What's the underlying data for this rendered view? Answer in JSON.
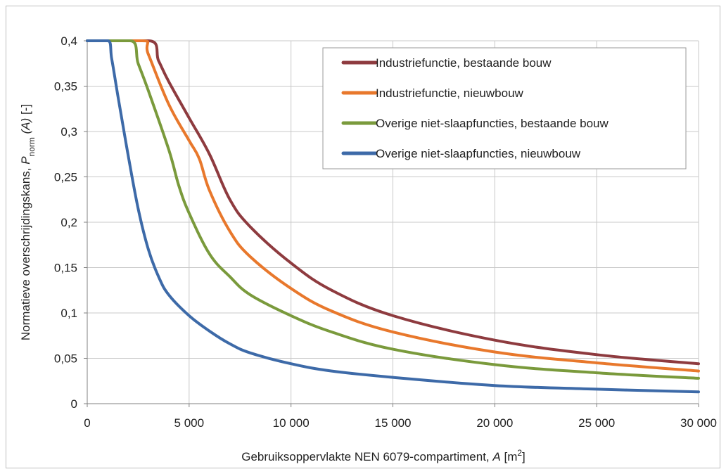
{
  "chart_data": {
    "type": "line",
    "xlabel": "Gebruiksoppervlakte NEN 6079-compartiment,",
    "xlabel_symbol": "A",
    "xlabel_unit_open": "[m",
    "xlabel_unit_exp": "2",
    "xlabel_unit_close": "]",
    "ylabel": "Normatieve overschrijdingskans,",
    "ylabel_symbol": "P",
    "ylabel_subscript": "norm",
    "ylabel_arg": "(A)",
    "ylabel_unit": "[-]",
    "xlim": [
      0,
      30000
    ],
    "ylim": [
      0,
      0.4
    ],
    "x_ticks": [
      0,
      5000,
      10000,
      15000,
      20000,
      25000,
      30000
    ],
    "x_tick_labels": [
      "0",
      "5 000",
      "10 000",
      "15 000",
      "20 000",
      "25 000",
      "30 000"
    ],
    "y_ticks": [
      0,
      0.05,
      0.1,
      0.15,
      0.2,
      0.25,
      0.3,
      0.35,
      0.4
    ],
    "y_tick_labels": [
      "0",
      "0,05",
      "0,1",
      "0,15",
      "0,2",
      "0,25",
      "0,3",
      "0,35",
      "0,4"
    ],
    "grid": true,
    "legend_position": "top-right",
    "series": [
      {
        "name": "Industriefunctie, bestaande bouw",
        "color": "#8e3b3f",
        "x": [
          0,
          3000,
          3500,
          4000,
          5000,
          6000,
          7000,
          8000,
          10000,
          12000,
          15000,
          20000,
          25000,
          30000
        ],
        "y": [
          0.4,
          0.4,
          0.378,
          0.355,
          0.315,
          0.275,
          0.225,
          0.195,
          0.155,
          0.125,
          0.097,
          0.07,
          0.054,
          0.044
        ]
      },
      {
        "name": "Industriefunctie, nieuwbouw",
        "color": "#e8782c",
        "x": [
          0,
          2700,
          3000,
          4000,
          5000,
          5500,
          6000,
          7000,
          8000,
          10000,
          12000,
          15000,
          20000,
          25000,
          30000
        ],
        "y": [
          0.4,
          0.4,
          0.385,
          0.33,
          0.29,
          0.27,
          0.235,
          0.19,
          0.162,
          0.127,
          0.102,
          0.079,
          0.057,
          0.045,
          0.036
        ]
      },
      {
        "name": "Overige niet-slaapfuncties, bestaande bouw",
        "color": "#7a9a3c",
        "x": [
          0,
          2100,
          2500,
          3000,
          4000,
          4500,
          5000,
          6000,
          7000,
          8000,
          10000,
          12000,
          15000,
          20000,
          25000,
          30000
        ],
        "y": [
          0.4,
          0.4,
          0.375,
          0.345,
          0.28,
          0.24,
          0.21,
          0.165,
          0.14,
          0.12,
          0.097,
          0.079,
          0.06,
          0.043,
          0.034,
          0.028
        ]
      },
      {
        "name": "Overige niet-slaapfuncties, nieuwbouw",
        "color": "#3d6aa8",
        "x": [
          0,
          1000,
          1200,
          1500,
          2000,
          2500,
          3000,
          3500,
          4000,
          5000,
          6000,
          7000,
          8000,
          10000,
          12000,
          15000,
          20000,
          25000,
          30000
        ],
        "y": [
          0.4,
          0.4,
          0.38,
          0.34,
          0.275,
          0.215,
          0.17,
          0.14,
          0.12,
          0.097,
          0.08,
          0.066,
          0.056,
          0.044,
          0.036,
          0.029,
          0.02,
          0.016,
          0.013
        ]
      }
    ]
  }
}
